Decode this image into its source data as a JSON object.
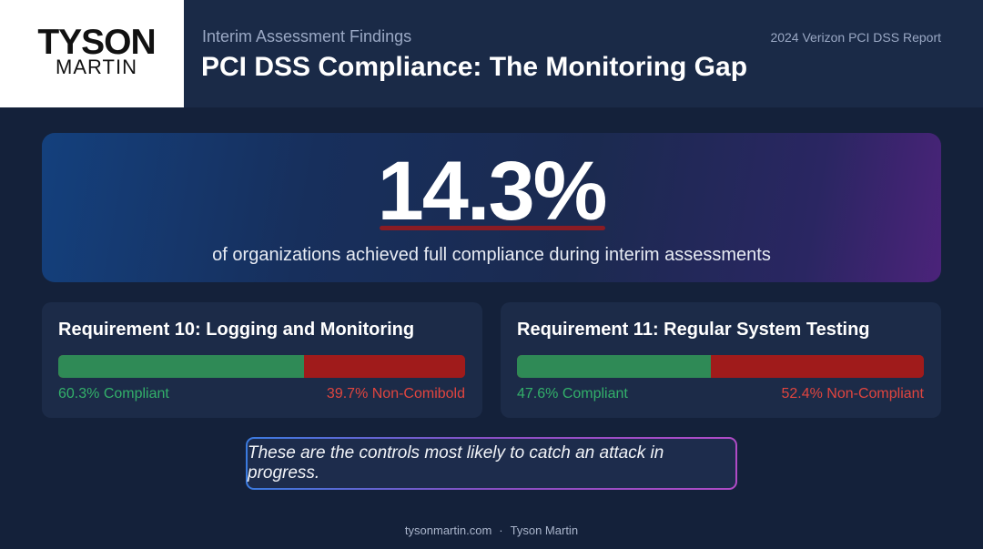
{
  "logo": {
    "line1": "TYSON",
    "line2": "MARTIN"
  },
  "header": {
    "eyebrow": "Interim Assessment Findings",
    "title": "PCI DSS Compliance: The Monitoring Gap",
    "report": "2024 Verizon PCI DSS Report"
  },
  "hero": {
    "value": "14.3%",
    "caption": "of organizations achieved full compliance during interim assessments"
  },
  "requirements": [
    {
      "title": "Requirement 10: Logging and Monitoring",
      "compliant_pct": 60.3,
      "compliant_label": "60.3% Compliant",
      "noncompliant_label": "39.7% Non-Comibold"
    },
    {
      "title": "Requirement 11: Regular System Testing",
      "compliant_pct": 47.6,
      "compliant_label": "47.6% Compliant",
      "noncompliant_label": "52.4% Non-Compliant"
    }
  ],
  "callout": "These are the controls most likely to catch an attack in progress.",
  "footer": {
    "site": "tysonmartin.com",
    "separator": "·",
    "author": "Tyson Martin"
  },
  "colors": {
    "background": "#14213a",
    "compliant": "#2f8a56",
    "noncompliant": "#a01b1b",
    "compliant_text": "#33b06a",
    "noncompliant_text": "#e0453f",
    "accent_underline": "#8a1c24"
  }
}
